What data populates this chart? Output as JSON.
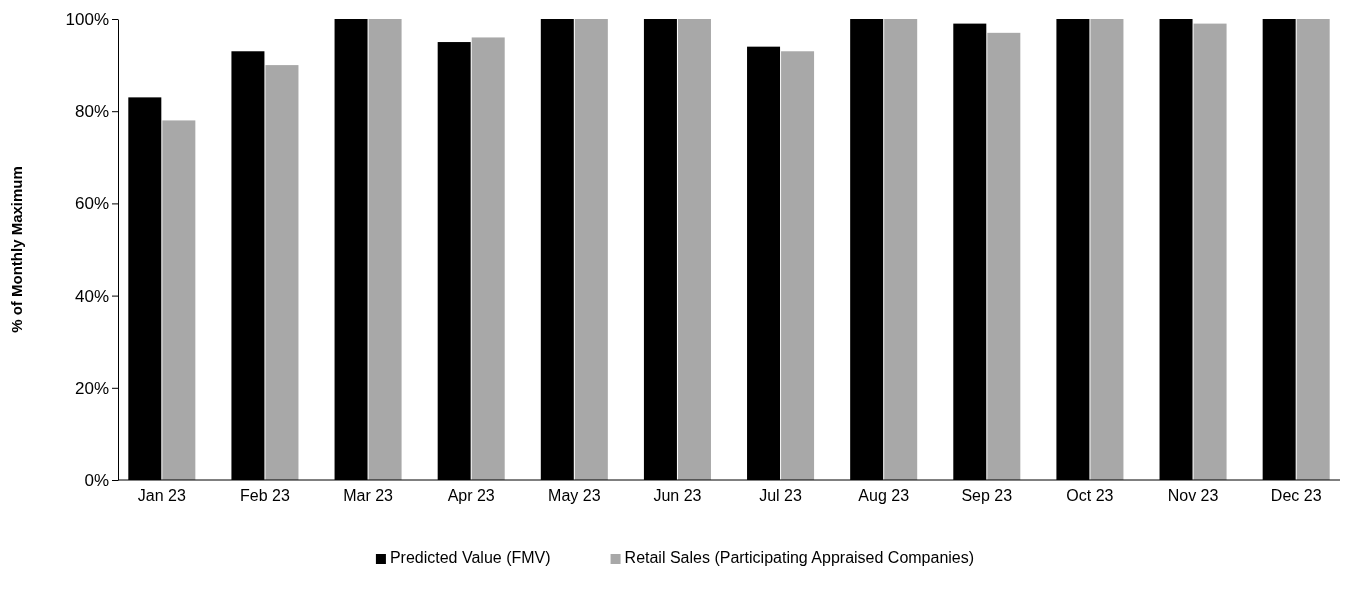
{
  "chart_data": {
    "type": "bar",
    "ylabel": "% of Monthly Maximum",
    "categories": [
      "Jan 23",
      "Feb 23",
      "Mar 23",
      "Apr 23",
      "May 23",
      "Jun 23",
      "Jul 23",
      "Aug 23",
      "Sep 23",
      "Oct 23",
      "Nov 23",
      "Dec 23"
    ],
    "series": [
      {
        "name": "Predicted Value (FMV)",
        "color": "#000000",
        "values": [
          83,
          93,
          100,
          95,
          100,
          100,
          94,
          100,
          99,
          100,
          100,
          100
        ]
      },
      {
        "name": "Retail Sales (Participating Appraised Companies)",
        "color": "#a8a8a8",
        "values": [
          78,
          90,
          100,
          96,
          100,
          100,
          93,
          100,
          97,
          100,
          99,
          100
        ]
      }
    ],
    "ylim": [
      0,
      100
    ],
    "yticks": [
      {
        "value": 0,
        "label": "0%"
      },
      {
        "value": 20,
        "label": "20%"
      },
      {
        "value": 40,
        "label": "40%"
      },
      {
        "value": 60,
        "label": "60%"
      },
      {
        "value": 80,
        "label": "80%"
      },
      {
        "value": 100,
        "label": "100%"
      }
    ],
    "grid": false,
    "legend": "bottom"
  }
}
